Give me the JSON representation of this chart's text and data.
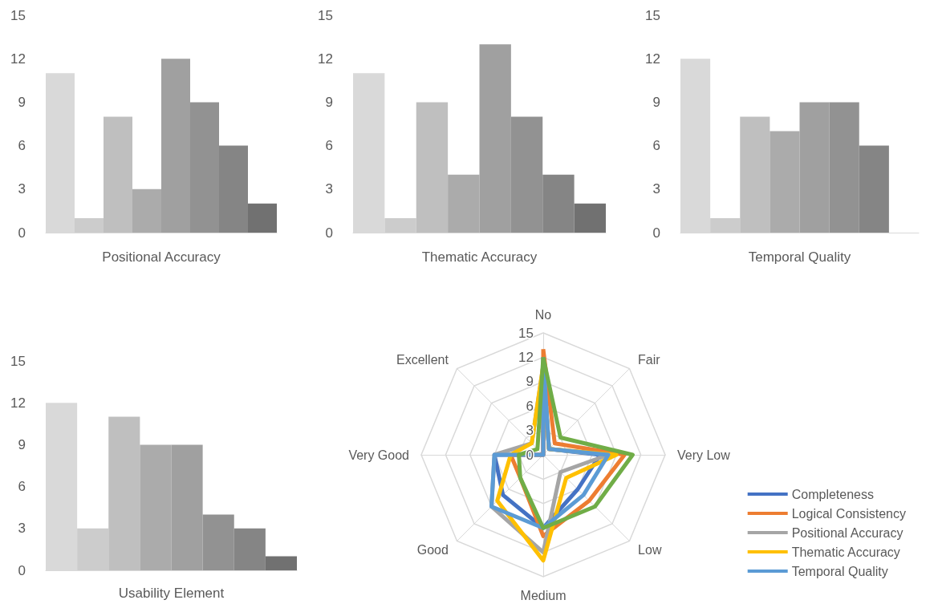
{
  "chart_data": [
    {
      "type": "bar",
      "xlabel": "Positional Accuracy",
      "categories": [
        null,
        null,
        null,
        null,
        null,
        null,
        null,
        null
      ],
      "values": [
        11,
        1,
        8,
        3,
        12,
        9,
        6,
        2
      ],
      "colors": [
        "#d9d9d9",
        "#cccccc",
        "#bfbfbf",
        "#ababab",
        "#a0a0a0",
        "#929292",
        "#858585",
        "#717171"
      ],
      "ylim": [
        0,
        15
      ],
      "yticks": [
        0,
        3,
        6,
        9,
        12,
        15
      ],
      "grid": false,
      "legend": false
    },
    {
      "type": "bar",
      "xlabel": "Thematic Accuracy",
      "categories": [
        null,
        null,
        null,
        null,
        null,
        null,
        null,
        null
      ],
      "values": [
        11,
        1,
        9,
        4,
        13,
        8,
        4,
        2
      ],
      "colors": [
        "#d9d9d9",
        "#cccccc",
        "#bfbfbf",
        "#ababab",
        "#a0a0a0",
        "#929292",
        "#858585",
        "#717171"
      ],
      "ylim": [
        0,
        15
      ],
      "yticks": [
        0,
        3,
        6,
        9,
        12,
        15
      ],
      "grid": false,
      "legend": false
    },
    {
      "type": "bar",
      "xlabel": "Temporal Quality",
      "categories": [
        null,
        null,
        null,
        null,
        null,
        null,
        null,
        null
      ],
      "values": [
        12,
        1,
        8,
        7,
        9,
        9,
        6,
        0
      ],
      "colors": [
        "#d9d9d9",
        "#cccccc",
        "#bfbfbf",
        "#ababab",
        "#a0a0a0",
        "#929292",
        "#858585",
        "#717171"
      ],
      "ylim": [
        0,
        15
      ],
      "yticks": [
        0,
        3,
        6,
        9,
        12,
        15
      ],
      "grid": false,
      "legend": false
    },
    {
      "type": "bar",
      "xlabel": "Usability Element",
      "categories": [
        null,
        null,
        null,
        null,
        null,
        null,
        null,
        null
      ],
      "values": [
        12,
        3,
        11,
        9,
        9,
        4,
        3,
        1
      ],
      "colors": [
        "#d9d9d9",
        "#cccccc",
        "#bfbfbf",
        "#ababab",
        "#a0a0a0",
        "#929292",
        "#858585",
        "#717171"
      ],
      "ylim": [
        0,
        15
      ],
      "yticks": [
        0,
        3,
        6,
        9,
        12,
        15
      ],
      "grid": false,
      "legend": false
    },
    {
      "type": "radar",
      "categories": [
        "No",
        "Fair",
        "Very Low",
        "Low",
        "Medium",
        "Good",
        "Very Good",
        "Excellent"
      ],
      "ylim": [
        0,
        15
      ],
      "yticks": [
        0,
        3,
        6,
        9,
        12,
        15
      ],
      "legend": "bottom right",
      "marker": "none",
      "series": [
        {
          "name": "Completeness",
          "color": "#4472c4",
          "values": [
            11,
            1,
            7,
            6,
            9,
            7,
            6,
            0
          ]
        },
        {
          "name": "Logical Consistency",
          "color": "#ed7d31",
          "values": [
            13,
            2,
            10,
            8,
            10,
            4,
            4,
            0
          ]
        },
        {
          "name": "Positional Accuracy",
          "color": "#a5a5a5",
          "values": [
            11,
            1,
            8,
            3,
            12,
            9,
            6,
            2
          ]
        },
        {
          "name": "Thematic Accuracy",
          "color": "#ffc000",
          "values": [
            11,
            1,
            9,
            4,
            13,
            8,
            4,
            2
          ]
        },
        {
          "name": "Temporal Quality",
          "color": "#5b9bd5",
          "values": [
            12,
            1,
            8,
            7,
            9,
            9,
            6,
            0
          ]
        },
        {
          "color": "#70ad47",
          "values": [
            12,
            3,
            11,
            9,
            9,
            4,
            3,
            1
          ]
        }
      ]
    }
  ]
}
